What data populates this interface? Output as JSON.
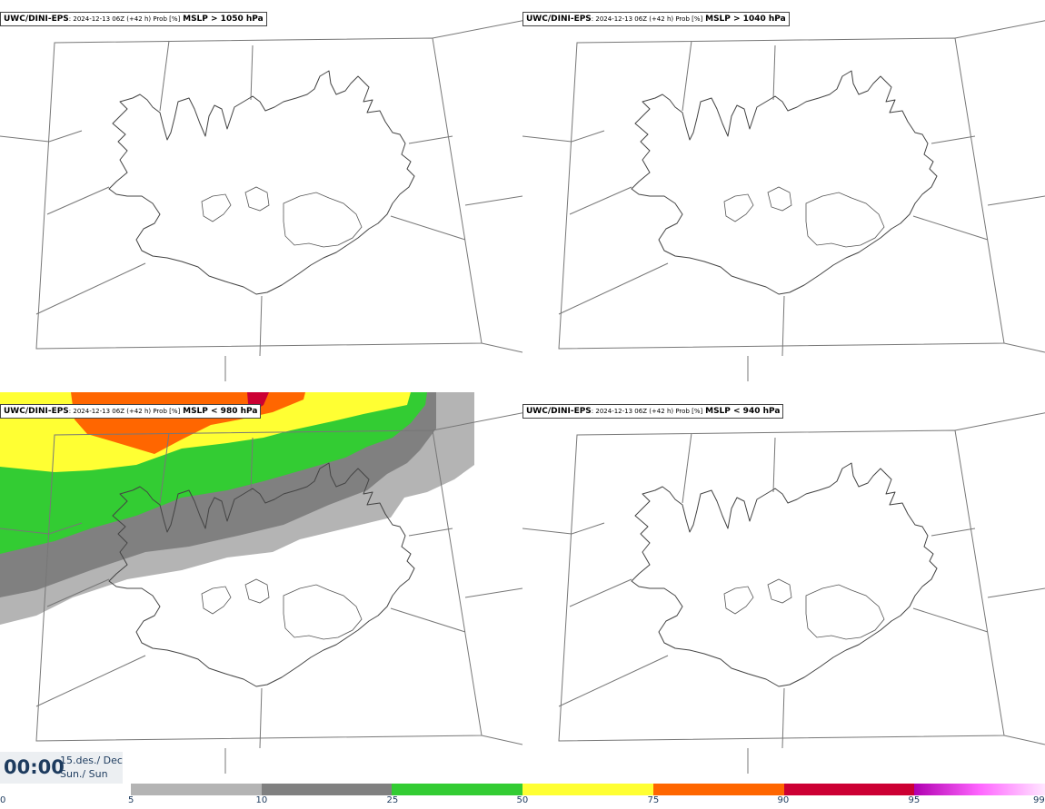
{
  "panels": [
    {
      "model": "UWC/DINI-EPS",
      "meta": ": 2024-12-13 06Z (+42 h) Prob [%]",
      "threshold": "MSLP > 1050 hPa",
      "has_field": false
    },
    {
      "model": "UWC/DINI-EPS",
      "meta": ": 2024-12-13 06Z (+42 h) Prob [%]",
      "threshold": "MSLP > 1040 hPa",
      "has_field": false
    },
    {
      "model": "UWC/DINI-EPS",
      "meta": ": 2024-12-13 06Z (+42 h) Prob [%]",
      "threshold": "MSLP < 980 hPa",
      "has_field": true
    },
    {
      "model": "UWC/DINI-EPS",
      "meta": ": 2024-12-13 06Z (+42 h) Prob [%]",
      "threshold": "MSLP < 940 hPa",
      "has_field": false
    }
  ],
  "valid_time": {
    "time": "00:00",
    "date_line1": "15.des./ Dec",
    "date_line2": "Sun./ Sun"
  },
  "colorbar": {
    "ticks": [
      "0",
      "5",
      "10",
      "25",
      "50",
      "75",
      "90",
      "95",
      "99"
    ],
    "colors": [
      "#ffffff",
      "#b4b4b4",
      "#808080",
      "#33cc33",
      "#ffff33",
      "#ff6600",
      "#cc0033",
      "#b000b0"
    ]
  }
}
